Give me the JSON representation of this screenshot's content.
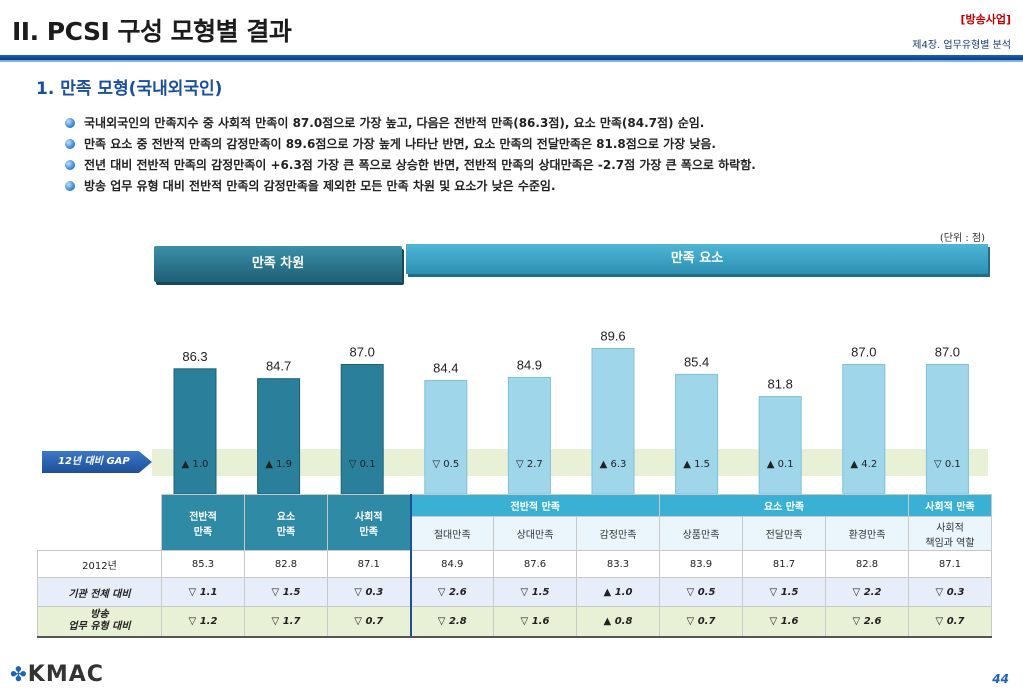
{
  "header": {
    "title": "II. PCSI 구성 모형별 결과",
    "tag": "[방송사업]",
    "chapter": "제4장. 업무유형별 분석"
  },
  "section_title": "1. 만족 모형(국내외국인)",
  "bullets": [
    "국내외국인의 만족지수 중 사회적 만족이 87.0점으로 가장 높고, 다음은 전반적 만족(86.3점), 요소 만족(84.7점) 순임.",
    "만족 요소 중 전반적 만족의 감정만족이 89.6점으로 가장 높게 나타난 반면, 요소 만족의 전달만족은 81.8점으로 가장 낮음.",
    "전년 대비 전반적 만족의 감정만족이 +6.3점 가장 큰 폭으로 상승한 반면, 전반적 만족의 상대만족은 -2.7점 가장 큰 폭으로 하락함.",
    "방송 업무 유형 대비 전반적 만족의 감정만족을 제외한 모든 만족 차원 및 요소가 낮은 수준임."
  ],
  "unit_label": "(단위 : 점)",
  "banners": {
    "dimension": "만족 차원",
    "element": "만족 요소"
  },
  "gap_label": "12년 대비 GAP",
  "chart_data": {
    "type": "bar",
    "categories": [
      "전반적 만족",
      "요소 만족",
      "사회적 만족",
      "절대만족",
      "상대만족",
      "감정만족",
      "상품만족",
      "전달만족",
      "환경만족",
      "사회적 책임과 역할"
    ],
    "values": [
      86.3,
      84.7,
      87.0,
      84.4,
      84.9,
      89.6,
      85.4,
      81.8,
      87.0,
      87.0
    ],
    "value_labels": [
      "86.3",
      "84.7",
      "87.0",
      "84.4",
      "84.9",
      "89.6",
      "85.4",
      "81.8",
      "87.0",
      "87.0"
    ],
    "groups": [
      "dimension",
      "dimension",
      "dimension",
      "element",
      "element",
      "element",
      "element",
      "element",
      "element",
      "element"
    ],
    "gap": [
      {
        "dir": "up",
        "text": "1.0"
      },
      {
        "dir": "up",
        "text": "1.9"
      },
      {
        "dir": "down",
        "text": "0.1"
      },
      {
        "dir": "down",
        "text": "0.5"
      },
      {
        "dir": "down",
        "text": "2.7"
      },
      {
        "dir": "up",
        "text": "6.3"
      },
      {
        "dir": "up",
        "text": "1.5"
      },
      {
        "dir": "up",
        "text": "0.1"
      },
      {
        "dir": "up",
        "text": "4.2"
      },
      {
        "dir": "down",
        "text": "0.1"
      }
    ],
    "colors": {
      "dimension": "#2a7f9a",
      "element": "#9fd6ea"
    }
  },
  "table": {
    "dim_headers": [
      "전반적\n만족",
      "요소\n만족",
      "사회적\n만족"
    ],
    "group_headers": [
      "전반적 만족",
      "요소 만족",
      "사회적 만족"
    ],
    "sub_headers": [
      "절대만족",
      "상대만족",
      "감정만족",
      "상품만족",
      "전달만족",
      "환경만족",
      "사회적\n책임과 역할"
    ],
    "rows": [
      {
        "label": "2012년",
        "cells": [
          "85.3",
          "82.8",
          "87.1",
          "84.9",
          "87.6",
          "83.3",
          "83.9",
          "81.7",
          "82.8",
          "87.1"
        ]
      },
      {
        "label": "기관 전체 대비",
        "cells": [
          "▽ 1.1",
          "▽ 1.5",
          "▽ 0.3",
          "▽ 2.6",
          "▽ 1.5",
          "▲ 1.0",
          "▽ 0.5",
          "▽ 1.5",
          "▽ 2.2",
          "▽ 0.3"
        ]
      },
      {
        "label": "방송\n업무 유형 대비",
        "cells": [
          "▽ 1.2",
          "▽ 1.7",
          "▽ 0.7",
          "▽ 2.8",
          "▽ 1.6",
          "▲ 0.8",
          "▽ 0.7",
          "▽ 1.6",
          "▽ 2.6",
          "▽ 0.7"
        ]
      }
    ]
  },
  "footer": {
    "logo": "KMAC",
    "page": "44"
  }
}
